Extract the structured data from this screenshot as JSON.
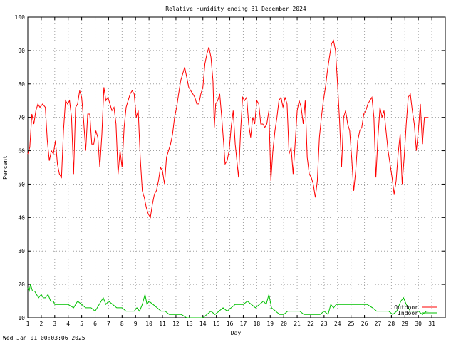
{
  "timestamp": "Wed Jan 01 00:03:06 2025",
  "chart_data": {
    "type": "line",
    "title": "Relative Humidity ending 31 December 2024",
    "xlabel": "Day",
    "ylabel": "Percent",
    "xlim": [
      1,
      32
    ],
    "ylim": [
      10,
      100
    ],
    "grid": true,
    "legend_position": "bottom-right",
    "yticks": [
      10,
      20,
      30,
      40,
      50,
      60,
      70,
      80,
      90,
      100
    ],
    "xticks": [
      1,
      2,
      3,
      4,
      5,
      6,
      7,
      8,
      9,
      10,
      11,
      12,
      13,
      14,
      15,
      16,
      17,
      18,
      19,
      20,
      21,
      22,
      23,
      24,
      25,
      26,
      27,
      28,
      29,
      30,
      31
    ],
    "series": [
      {
        "name": "Outdoor",
        "color": "#ff0000",
        "points": [
          [
            1.0,
            59
          ],
          [
            1.15,
            61
          ],
          [
            1.3,
            71
          ],
          [
            1.45,
            68
          ],
          [
            1.6,
            72
          ],
          [
            1.75,
            74
          ],
          [
            1.9,
            73
          ],
          [
            2.1,
            74
          ],
          [
            2.3,
            73
          ],
          [
            2.45,
            63
          ],
          [
            2.6,
            57
          ],
          [
            2.75,
            60
          ],
          [
            2.9,
            59
          ],
          [
            3.05,
            63
          ],
          [
            3.2,
            56
          ],
          [
            3.35,
            53
          ],
          [
            3.5,
            52
          ],
          [
            3.65,
            66
          ],
          [
            3.8,
            75
          ],
          [
            3.95,
            74
          ],
          [
            4.1,
            75
          ],
          [
            4.25,
            70
          ],
          [
            4.4,
            53
          ],
          [
            4.55,
            73
          ],
          [
            4.7,
            74
          ],
          [
            4.85,
            78
          ],
          [
            5.0,
            76
          ],
          [
            5.15,
            69
          ],
          [
            5.3,
            60
          ],
          [
            5.45,
            71
          ],
          [
            5.6,
            71
          ],
          [
            5.75,
            62
          ],
          [
            5.9,
            62
          ],
          [
            6.05,
            66
          ],
          [
            6.2,
            64
          ],
          [
            6.35,
            55
          ],
          [
            6.5,
            65
          ],
          [
            6.65,
            79
          ],
          [
            6.8,
            75
          ],
          [
            6.95,
            76
          ],
          [
            7.1,
            74
          ],
          [
            7.25,
            72
          ],
          [
            7.4,
            73
          ],
          [
            7.55,
            68
          ],
          [
            7.7,
            53
          ],
          [
            7.85,
            60
          ],
          [
            8.0,
            55
          ],
          [
            8.15,
            67
          ],
          [
            8.3,
            73
          ],
          [
            8.45,
            75
          ],
          [
            8.6,
            77
          ],
          [
            8.75,
            78
          ],
          [
            8.9,
            77
          ],
          [
            9.05,
            70
          ],
          [
            9.2,
            72
          ],
          [
            9.35,
            58
          ],
          [
            9.5,
            48
          ],
          [
            9.65,
            46
          ],
          [
            9.8,
            43
          ],
          [
            9.95,
            41
          ],
          [
            10.1,
            40
          ],
          [
            10.25,
            44
          ],
          [
            10.4,
            47
          ],
          [
            10.55,
            48
          ],
          [
            10.7,
            51
          ],
          [
            10.85,
            55
          ],
          [
            11.0,
            54
          ],
          [
            11.15,
            50
          ],
          [
            11.3,
            58
          ],
          [
            11.45,
            60
          ],
          [
            11.6,
            62
          ],
          [
            11.75,
            65
          ],
          [
            11.9,
            70
          ],
          [
            12.05,
            73
          ],
          [
            12.2,
            77
          ],
          [
            12.35,
            81
          ],
          [
            12.5,
            83
          ],
          [
            12.65,
            85
          ],
          [
            12.8,
            82
          ],
          [
            12.95,
            79
          ],
          [
            13.1,
            78
          ],
          [
            13.25,
            77
          ],
          [
            13.4,
            76
          ],
          [
            13.55,
            74
          ],
          [
            13.7,
            74
          ],
          [
            13.85,
            77
          ],
          [
            14.0,
            79
          ],
          [
            14.15,
            86
          ],
          [
            14.3,
            89
          ],
          [
            14.45,
            91
          ],
          [
            14.6,
            88
          ],
          [
            14.75,
            81
          ],
          [
            14.85,
            67
          ],
          [
            14.95,
            74
          ],
          [
            15.1,
            75
          ],
          [
            15.25,
            77
          ],
          [
            15.4,
            70
          ],
          [
            15.55,
            62
          ],
          [
            15.65,
            56
          ],
          [
            15.8,
            57
          ],
          [
            15.95,
            60
          ],
          [
            16.1,
            67
          ],
          [
            16.25,
            72
          ],
          [
            16.4,
            62
          ],
          [
            16.5,
            58
          ],
          [
            16.65,
            52
          ],
          [
            16.8,
            66
          ],
          [
            16.95,
            76
          ],
          [
            17.1,
            75
          ],
          [
            17.25,
            76
          ],
          [
            17.4,
            68
          ],
          [
            17.55,
            64
          ],
          [
            17.7,
            70
          ],
          [
            17.85,
            68
          ],
          [
            18.0,
            75
          ],
          [
            18.15,
            74
          ],
          [
            18.3,
            68
          ],
          [
            18.45,
            68
          ],
          [
            18.6,
            67
          ],
          [
            18.75,
            68
          ],
          [
            18.9,
            72
          ],
          [
            19.05,
            51
          ],
          [
            19.2,
            60
          ],
          [
            19.35,
            66
          ],
          [
            19.5,
            70
          ],
          [
            19.65,
            75
          ],
          [
            19.8,
            76
          ],
          [
            19.95,
            73
          ],
          [
            20.1,
            76
          ],
          [
            20.25,
            74
          ],
          [
            20.4,
            59
          ],
          [
            20.55,
            61
          ],
          [
            20.7,
            53
          ],
          [
            20.85,
            62
          ],
          [
            21.0,
            72
          ],
          [
            21.15,
            75
          ],
          [
            21.3,
            73
          ],
          [
            21.45,
            68
          ],
          [
            21.6,
            75
          ],
          [
            21.75,
            58
          ],
          [
            21.9,
            53
          ],
          [
            22.05,
            52
          ],
          [
            22.2,
            50
          ],
          [
            22.35,
            46
          ],
          [
            22.5,
            51
          ],
          [
            22.65,
            64
          ],
          [
            22.8,
            70
          ],
          [
            22.95,
            75
          ],
          [
            23.1,
            79
          ],
          [
            23.25,
            84
          ],
          [
            23.4,
            88
          ],
          [
            23.55,
            92
          ],
          [
            23.7,
            93
          ],
          [
            23.85,
            90
          ],
          [
            24.0,
            80
          ],
          [
            24.15,
            69
          ],
          [
            24.3,
            55
          ],
          [
            24.45,
            70
          ],
          [
            24.6,
            72
          ],
          [
            24.75,
            68
          ],
          [
            24.9,
            66
          ],
          [
            25.05,
            58
          ],
          [
            25.2,
            48
          ],
          [
            25.35,
            54
          ],
          [
            25.5,
            63
          ],
          [
            25.65,
            66
          ],
          [
            25.8,
            67
          ],
          [
            25.95,
            71
          ],
          [
            26.1,
            72
          ],
          [
            26.25,
            74
          ],
          [
            26.4,
            75
          ],
          [
            26.55,
            76
          ],
          [
            26.7,
            70
          ],
          [
            26.85,
            52
          ],
          [
            27.0,
            64
          ],
          [
            27.15,
            73
          ],
          [
            27.3,
            70
          ],
          [
            27.45,
            72
          ],
          [
            27.6,
            66
          ],
          [
            27.75,
            60
          ],
          [
            27.9,
            56
          ],
          [
            28.05,
            52
          ],
          [
            28.2,
            47
          ],
          [
            28.35,
            51
          ],
          [
            28.5,
            59
          ],
          [
            28.65,
            65
          ],
          [
            28.8,
            50
          ],
          [
            28.95,
            58
          ],
          [
            29.1,
            68
          ],
          [
            29.25,
            76
          ],
          [
            29.4,
            77
          ],
          [
            29.55,
            72
          ],
          [
            29.7,
            68
          ],
          [
            29.85,
            60
          ],
          [
            30.0,
            66
          ],
          [
            30.15,
            74
          ],
          [
            30.3,
            62
          ],
          [
            30.45,
            70
          ],
          [
            30.6,
            70
          ],
          [
            30.75,
            70
          ]
        ]
      },
      {
        "name": "Indoor",
        "color": "#00c000",
        "points": [
          [
            1.0,
            19
          ],
          [
            1.1,
            18
          ],
          [
            1.2,
            20
          ],
          [
            1.35,
            18
          ],
          [
            1.5,
            18
          ],
          [
            1.65,
            17
          ],
          [
            1.8,
            16
          ],
          [
            2.0,
            17
          ],
          [
            2.15,
            16
          ],
          [
            2.3,
            16
          ],
          [
            2.5,
            17
          ],
          [
            2.7,
            15
          ],
          [
            2.9,
            15
          ],
          [
            3.0,
            14
          ],
          [
            3.3,
            14
          ],
          [
            3.6,
            14
          ],
          [
            4.0,
            14
          ],
          [
            4.4,
            13
          ],
          [
            4.7,
            15
          ],
          [
            5.0,
            14
          ],
          [
            5.3,
            13
          ],
          [
            5.7,
            13
          ],
          [
            6.0,
            12
          ],
          [
            6.3,
            14
          ],
          [
            6.6,
            16
          ],
          [
            6.8,
            14
          ],
          [
            7.0,
            15
          ],
          [
            7.3,
            14
          ],
          [
            7.6,
            13
          ],
          [
            8.0,
            13
          ],
          [
            8.3,
            12
          ],
          [
            8.6,
            12
          ],
          [
            8.9,
            12
          ],
          [
            9.1,
            13
          ],
          [
            9.3,
            12
          ],
          [
            9.5,
            14
          ],
          [
            9.7,
            17
          ],
          [
            9.85,
            14
          ],
          [
            10.0,
            15
          ],
          [
            10.3,
            14
          ],
          [
            10.6,
            13
          ],
          [
            10.9,
            12
          ],
          [
            11.2,
            12
          ],
          [
            11.5,
            11
          ],
          [
            11.8,
            11
          ],
          [
            12.1,
            11
          ],
          [
            12.4,
            11
          ],
          [
            12.8,
            10
          ],
          [
            13.2,
            10
          ],
          [
            13.6,
            10
          ],
          [
            14.0,
            10
          ],
          [
            14.3,
            11
          ],
          [
            14.6,
            12
          ],
          [
            14.9,
            11
          ],
          [
            15.2,
            12
          ],
          [
            15.5,
            13
          ],
          [
            15.8,
            12
          ],
          [
            16.1,
            13
          ],
          [
            16.4,
            14
          ],
          [
            16.7,
            14
          ],
          [
            17.0,
            14
          ],
          [
            17.3,
            15
          ],
          [
            17.6,
            14
          ],
          [
            17.9,
            13
          ],
          [
            18.2,
            14
          ],
          [
            18.5,
            15
          ],
          [
            18.7,
            14
          ],
          [
            18.9,
            17
          ],
          [
            19.1,
            13
          ],
          [
            19.4,
            12
          ],
          [
            19.7,
            11
          ],
          [
            20.0,
            11
          ],
          [
            20.3,
            12
          ],
          [
            20.6,
            12
          ],
          [
            20.9,
            12
          ],
          [
            21.2,
            12
          ],
          [
            21.5,
            11
          ],
          [
            21.8,
            11
          ],
          [
            22.1,
            11
          ],
          [
            22.4,
            11
          ],
          [
            22.7,
            11
          ],
          [
            23.0,
            12
          ],
          [
            23.3,
            11
          ],
          [
            23.5,
            14
          ],
          [
            23.7,
            13
          ],
          [
            23.9,
            14
          ],
          [
            24.2,
            14
          ],
          [
            24.6,
            14
          ],
          [
            25.0,
            14
          ],
          [
            25.4,
            14
          ],
          [
            25.8,
            14
          ],
          [
            26.2,
            14
          ],
          [
            26.6,
            13
          ],
          [
            26.9,
            12
          ],
          [
            27.2,
            12
          ],
          [
            27.5,
            12
          ],
          [
            27.8,
            12
          ],
          [
            28.1,
            11
          ],
          [
            28.4,
            12
          ],
          [
            28.7,
            15
          ],
          [
            28.9,
            16
          ],
          [
            29.1,
            14
          ],
          [
            29.4,
            12
          ],
          [
            29.7,
            12
          ],
          [
            30.0,
            12
          ],
          [
            30.3,
            11
          ],
          [
            30.6,
            12
          ],
          [
            30.75,
            12
          ]
        ]
      }
    ]
  }
}
